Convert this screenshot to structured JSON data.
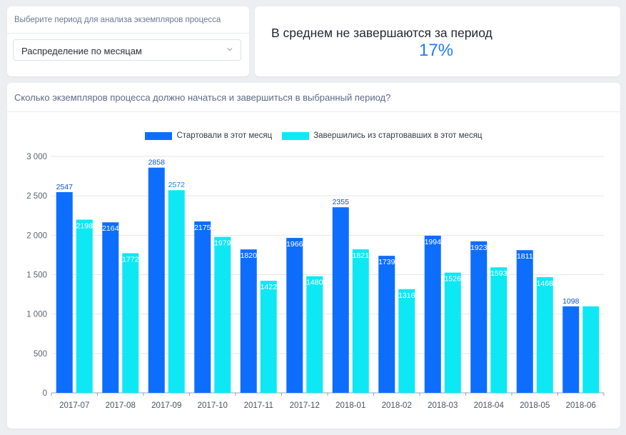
{
  "filter": {
    "label": "Выберите период для анализа экземпляров процесса",
    "selected": "Распределение по месяцам"
  },
  "kpi": {
    "title": "В среднем не завершаются за период",
    "value": "17%"
  },
  "chart": {
    "title": "Сколько экземпляров процесса должно начаться и завершиться в выбранный период?"
  },
  "colors": {
    "started": "#0d6efd",
    "finished": "#0ee8f5",
    "accent": "#1e7bf6"
  },
  "chart_data": {
    "type": "bar",
    "categories": [
      "2017-07",
      "2017-08",
      "2017-09",
      "2017-10",
      "2017-11",
      "2017-12",
      "2018-01",
      "2018-02",
      "2018-03",
      "2018-04",
      "2018-05",
      "2018-06"
    ],
    "series": [
      {
        "name": "Стартовали в этот месяц",
        "values": [
          2547,
          2164,
          2858,
          2175,
          1820,
          1966,
          2355,
          1739,
          1994,
          1923,
          1811,
          1098
        ]
      },
      {
        "name": "Завершились из стартовавших в этот месяц",
        "values": [
          2198,
          1772,
          2572,
          1979,
          1422,
          1480,
          1821,
          1316,
          1526,
          1593,
          1468,
          1098
        ]
      }
    ],
    "data_labels": [
      [
        "2547",
        "2164",
        "2858",
        "2175",
        "1820",
        "1966",
        "2355",
        "1739",
        "1994",
        "1923",
        "1811",
        "1098"
      ],
      [
        "2198",
        "1772",
        "2572",
        "1979",
        "1422",
        "1480",
        "1821",
        "1316",
        "1526",
        "1593",
        "1468",
        ""
      ]
    ],
    "yticks": [
      "0",
      "500",
      "1 000",
      "1 500",
      "2 000",
      "2 500",
      "3 000"
    ],
    "ylim": [
      0,
      3000
    ],
    "grid": true,
    "legend_position": "top-center"
  }
}
